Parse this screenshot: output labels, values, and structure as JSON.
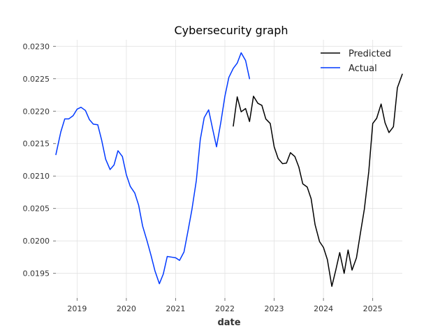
{
  "chart_data": {
    "type": "line",
    "title": "Cybersecurity graph",
    "xlabel": "date",
    "ylabel": "",
    "xlim": [
      2018.57,
      2025.6
    ],
    "ylim": [
      0.01912,
      0.0231
    ],
    "x_ticks": [
      {
        "value": 2019,
        "label": "2019"
      },
      {
        "value": 2020,
        "label": "2020"
      },
      {
        "value": 2021,
        "label": "2021"
      },
      {
        "value": 2022,
        "label": "2022"
      },
      {
        "value": 2023,
        "label": "2023"
      },
      {
        "value": 2024,
        "label": "2024"
      },
      {
        "value": 2025,
        "label": "2025"
      }
    ],
    "y_ticks": [
      {
        "value": 0.0195,
        "label": "0.0195"
      },
      {
        "value": 0.02,
        "label": "0.0200"
      },
      {
        "value": 0.0205,
        "label": "0.0205"
      },
      {
        "value": 0.021,
        "label": "0.0210"
      },
      {
        "value": 0.0215,
        "label": "0.0215"
      },
      {
        "value": 0.022,
        "label": "0.0220"
      },
      {
        "value": 0.0225,
        "label": "0.0225"
      },
      {
        "value": 0.023,
        "label": "0.0230"
      }
    ],
    "grid": true,
    "legend_position": "top-right",
    "series": [
      {
        "name": "Predicted",
        "color": "#000000",
        "x": [
          2022.17,
          2022.25,
          2022.33,
          2022.42,
          2022.5,
          2022.58,
          2022.67,
          2022.75,
          2022.83,
          2022.92,
          2023.0,
          2023.08,
          2023.17,
          2023.25,
          2023.33,
          2023.42,
          2023.5,
          2023.58,
          2023.67,
          2023.75,
          2023.83,
          2023.92,
          2024.0,
          2024.08,
          2024.17,
          2024.25,
          2024.33,
          2024.42,
          2024.5,
          2024.58,
          2024.67,
          2024.75,
          2024.83,
          2024.92,
          2025.0,
          2025.08,
          2025.17,
          2025.25,
          2025.33,
          2025.42,
          2025.5,
          2025.6
        ],
        "y": [
          0.02177,
          0.02222,
          0.02199,
          0.02204,
          0.02184,
          0.02223,
          0.02212,
          0.02209,
          0.02188,
          0.02181,
          0.02145,
          0.02127,
          0.02119,
          0.0212,
          0.02136,
          0.0213,
          0.02114,
          0.02088,
          0.02083,
          0.02065,
          0.02025,
          0.01999,
          0.0199,
          0.01971,
          0.0193,
          0.01955,
          0.01982,
          0.0195,
          0.01986,
          0.01955,
          0.01974,
          0.02012,
          0.02049,
          0.02107,
          0.02181,
          0.02189,
          0.02211,
          0.02182,
          0.02167,
          0.02176,
          0.02236,
          0.02257
        ]
      },
      {
        "name": "Actual",
        "color": "#0039ff",
        "x": [
          2018.57,
          2018.67,
          2018.75,
          2018.83,
          2018.92,
          2019.0,
          2019.08,
          2019.17,
          2019.25,
          2019.33,
          2019.42,
          2019.5,
          2019.58,
          2019.67,
          2019.75,
          2019.83,
          2019.92,
          2020.0,
          2020.08,
          2020.17,
          2020.25,
          2020.33,
          2020.42,
          2020.5,
          2020.58,
          2020.67,
          2020.75,
          2020.83,
          2020.92,
          2021.0,
          2021.08,
          2021.17,
          2021.25,
          2021.33,
          2021.42,
          2021.5,
          2021.58,
          2021.67,
          2021.75,
          2021.83,
          2021.92,
          2022.0,
          2022.08,
          2022.17,
          2022.25,
          2022.33,
          2022.42,
          2022.5
        ],
        "y": [
          0.02133,
          0.02168,
          0.02188,
          0.02188,
          0.02193,
          0.02203,
          0.02206,
          0.02201,
          0.02187,
          0.0218,
          0.02179,
          0.02155,
          0.02126,
          0.0211,
          0.02117,
          0.02139,
          0.0213,
          0.02102,
          0.02084,
          0.02074,
          0.02055,
          0.02023,
          0.02,
          0.01978,
          0.01954,
          0.01934,
          0.01949,
          0.01976,
          0.01975,
          0.01974,
          0.0197,
          0.01983,
          0.02015,
          0.02048,
          0.02093,
          0.02156,
          0.0219,
          0.02202,
          0.02173,
          0.02145,
          0.02184,
          0.02223,
          0.02252,
          0.02266,
          0.02274,
          0.0229,
          0.02278,
          0.0225
        ]
      }
    ]
  }
}
